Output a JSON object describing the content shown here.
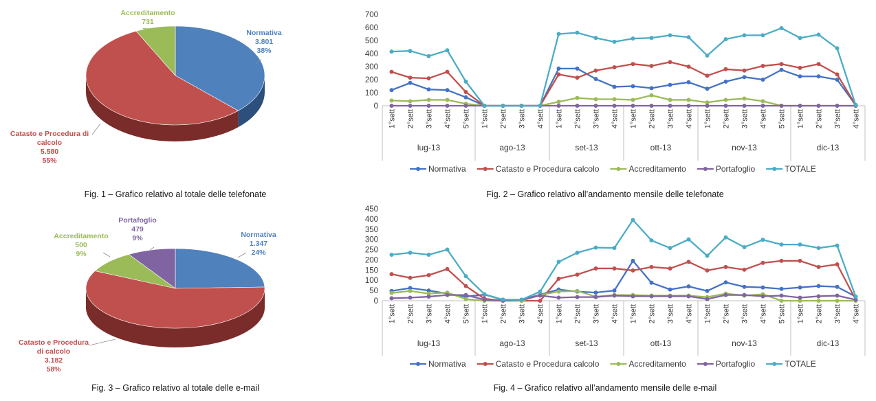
{
  "captions": {
    "fig1": "Fig. 1 – Grafico relativo al totale delle telefonate",
    "fig2": "Fig. 2 – Grafico relativo all’andamento mensile delle telefonate",
    "fig3": "Fig. 3 – Grafico relativo al totale delle e-mail",
    "fig4": "Fig. 4 – Grafico relativo all’andamento mensile delle e-mail"
  },
  "chart_data": [
    {
      "type": "pie",
      "id": "fig1",
      "slices": [
        {
          "name": "Normativa",
          "value": 3801,
          "value_label": "3.801",
          "percent": "38%",
          "color": "#4f81bd",
          "side": "#2c4f7c",
          "label_lines": [
            "Normativa"
          ]
        },
        {
          "name": "Catasto e Procedura di calcolo",
          "value": 5580,
          "value_label": "5.580",
          "percent": "55%",
          "color": "#c0504d",
          "side": "#7a2c2a",
          "label_lines": [
            "Catasto e Procedura di",
            "calcolo"
          ]
        },
        {
          "name": "Accreditamento",
          "value": 731,
          "value_label": "731",
          "percent": "7%",
          "color": "#9bbb59",
          "side": "#5f7a30",
          "label_lines": [
            "Accreditamento"
          ]
        }
      ]
    },
    {
      "type": "line",
      "id": "fig2",
      "ylim": [
        0,
        700
      ],
      "yticks": [
        0,
        100,
        200,
        300,
        400,
        500,
        600,
        700
      ],
      "x": [
        "1°sett",
        "2°sett",
        "3°sett",
        "4°sett",
        "5°sett",
        "1°sett",
        "2°sett",
        "3°sett",
        "4°sett",
        "1°sett",
        "2°sett",
        "3°sett",
        "4°sett",
        "1°sett",
        "2°sett",
        "3°sett",
        "4°sett",
        "1°sett",
        "2°sett",
        "3°sett",
        "4°sett",
        "5°sett",
        "1°sett",
        "2°sett",
        "3°sett",
        "4°sett"
      ],
      "groups": [
        {
          "label": "lug-13",
          "count": 5
        },
        {
          "label": "ago-13",
          "count": 4
        },
        {
          "label": "set-13",
          "count": 4
        },
        {
          "label": "ott-13",
          "count": 4
        },
        {
          "label": "nov-13",
          "count": 5
        },
        {
          "label": "dic-13",
          "count": 4
        }
      ],
      "legend_position": "bottom",
      "grid": false,
      "series": [
        {
          "name": "Normativa",
          "color": "#4472c4",
          "values": [
            120,
            175,
            125,
            120,
            65,
            0,
            0,
            0,
            0,
            285,
            285,
            205,
            145,
            150,
            135,
            160,
            180,
            130,
            185,
            220,
            200,
            275,
            225,
            225,
            200,
            5
          ]
        },
        {
          "name": "Catasto e Procedura calcolo",
          "color": "#c0504d",
          "values": [
            260,
            215,
            210,
            260,
            105,
            0,
            0,
            0,
            0,
            240,
            215,
            270,
            295,
            320,
            305,
            335,
            300,
            230,
            280,
            270,
            305,
            320,
            290,
            320,
            240,
            5
          ]
        },
        {
          "name": "Accreditamento",
          "color": "#9bbb59",
          "values": [
            40,
            35,
            45,
            45,
            15,
            0,
            0,
            0,
            0,
            30,
            60,
            50,
            50,
            45,
            80,
            45,
            45,
            25,
            45,
            55,
            35,
            0,
            0,
            0,
            0,
            0
          ]
        },
        {
          "name": "Portafoglio",
          "color": "#8064a2",
          "values": [
            0,
            0,
            0,
            0,
            0,
            0,
            0,
            0,
            0,
            0,
            0,
            0,
            0,
            0,
            0,
            0,
            0,
            0,
            0,
            0,
            0,
            0,
            0,
            0,
            0,
            0
          ]
        },
        {
          "name": "TOTALE",
          "color": "#4bacc6",
          "values": [
            415,
            420,
            380,
            425,
            185,
            0,
            0,
            0,
            0,
            550,
            560,
            520,
            490,
            515,
            520,
            540,
            525,
            385,
            510,
            540,
            540,
            595,
            520,
            545,
            440,
            5
          ]
        }
      ]
    },
    {
      "type": "pie",
      "id": "fig3",
      "slices": [
        {
          "name": "Normativa",
          "value": 1347,
          "value_label": "1.347",
          "percent": "24%",
          "color": "#4f81bd",
          "side": "#2c4f7c",
          "label_lines": [
            "Normativa"
          ]
        },
        {
          "name": "Catasto e Procedura di calcolo",
          "value": 3182,
          "value_label": "3.182",
          "percent": "58%",
          "color": "#c0504d",
          "side": "#7a2c2a",
          "label_lines": [
            "Catasto e Procedura",
            "di calcolo"
          ]
        },
        {
          "name": "Accreditamento",
          "value": 500,
          "value_label": "500",
          "percent": "9%",
          "color": "#9bbb59",
          "side": "#5f7a30",
          "label_lines": [
            "Accreditamento"
          ]
        },
        {
          "name": "Portafoglio",
          "value": 479,
          "value_label": "479",
          "percent": "9%",
          "color": "#8064a2",
          "side": "#4d3a66",
          "label_lines": [
            "Portafoglio"
          ]
        }
      ]
    },
    {
      "type": "line",
      "id": "fig4",
      "ylim": [
        0,
        450
      ],
      "yticks": [
        0,
        50,
        100,
        150,
        200,
        250,
        300,
        350,
        400,
        450
      ],
      "x": [
        "1°sett",
        "2°sett",
        "3°sett",
        "4°sett",
        "5°sett",
        "1°sett",
        "2°sett",
        "3°sett",
        "4°sett",
        "1°sett",
        "2°sett",
        "3°sett",
        "4°sett",
        "1°sett",
        "2°sett",
        "3°sett",
        "4°sett",
        "1°sett",
        "2°sett",
        "3°sett",
        "4°sett",
        "5°sett",
        "1°sett",
        "2°sett",
        "3°sett",
        "4°sett"
      ],
      "groups": [
        {
          "label": "lug-13",
          "count": 5
        },
        {
          "label": "ago-13",
          "count": 4
        },
        {
          "label": "set-13",
          "count": 4
        },
        {
          "label": "ott-13",
          "count": 4
        },
        {
          "label": "nov-13",
          "count": 5
        },
        {
          "label": "dic-13",
          "count": 4
        }
      ],
      "legend_position": "bottom",
      "grid": false,
      "series": [
        {
          "name": "Normativa",
          "color": "#4472c4",
          "values": [
            48,
            62,
            50,
            35,
            20,
            30,
            5,
            5,
            30,
            55,
            45,
            40,
            50,
            195,
            88,
            55,
            70,
            48,
            90,
            68,
            65,
            58,
            65,
            72,
            68,
            20
          ]
        },
        {
          "name": "Catasto e Procedura calcolo",
          "color": "#c0504d",
          "values": [
            130,
            112,
            125,
            155,
            72,
            10,
            0,
            0,
            0,
            108,
            128,
            158,
            158,
            148,
            165,
            158,
            190,
            148,
            165,
            152,
            185,
            195,
            195,
            165,
            178,
            5
          ]
        },
        {
          "name": "Accreditamento",
          "color": "#9bbb59",
          "values": [
            38,
            48,
            35,
            40,
            8,
            0,
            0,
            0,
            28,
            45,
            48,
            20,
            28,
            28,
            25,
            25,
            25,
            18,
            35,
            25,
            32,
            0,
            0,
            0,
            0,
            0
          ]
        },
        {
          "name": "Portafoglio",
          "color": "#8064a2",
          "values": [
            12,
            15,
            20,
            28,
            28,
            5,
            0,
            5,
            25,
            15,
            18,
            18,
            25,
            22,
            22,
            22,
            22,
            8,
            28,
            28,
            22,
            25,
            15,
            22,
            25,
            5
          ]
        },
        {
          "name": "TOTALE",
          "color": "#4bacc6",
          "values": [
            225,
            235,
            225,
            250,
            120,
            32,
            5,
            5,
            45,
            190,
            235,
            260,
            258,
            395,
            295,
            258,
            300,
            220,
            310,
            262,
            298,
            275,
            275,
            258,
            270,
            20
          ]
        }
      ]
    }
  ]
}
